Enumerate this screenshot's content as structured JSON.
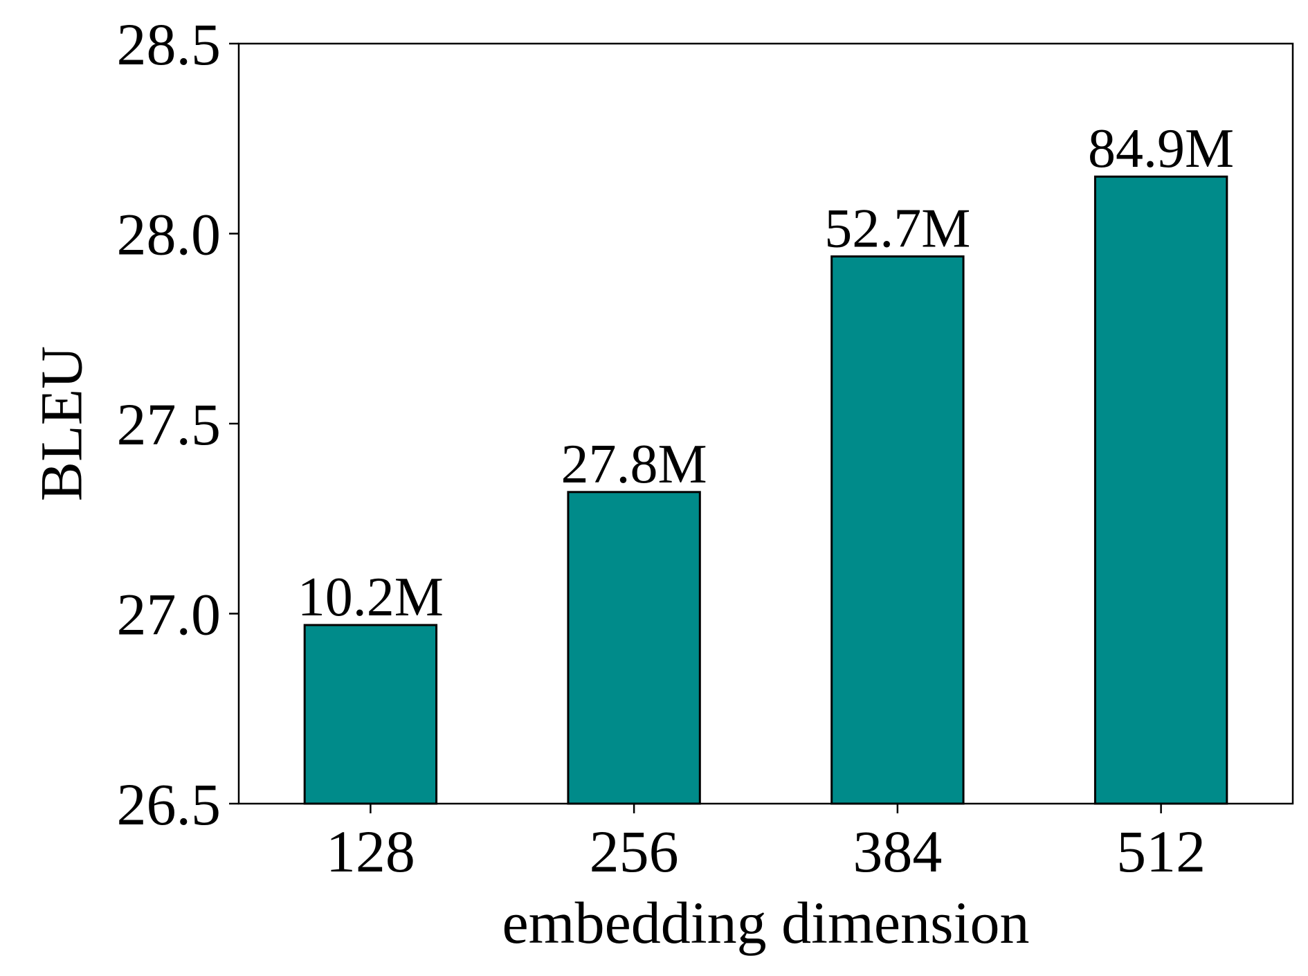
{
  "chart_data": {
    "type": "bar",
    "categories": [
      "128",
      "256",
      "384",
      "512"
    ],
    "values": [
      26.97,
      27.32,
      27.94,
      28.15
    ],
    "bar_labels": [
      "10.2M",
      "27.8M",
      "52.7M",
      "84.9M"
    ],
    "xlabel": "embedding dimension",
    "ylabel": "BLEU",
    "ylim": [
      26.5,
      28.5
    ],
    "yticks": [
      26.5,
      27.0,
      27.5,
      28.0,
      28.5
    ],
    "ytick_labels": [
      "26.5",
      "27.0",
      "27.5",
      "28.0",
      "28.5"
    ],
    "grid": false,
    "legend": "none",
    "colors": {
      "bar_fill": "#008b8a",
      "bar_edge": "#000000"
    }
  }
}
